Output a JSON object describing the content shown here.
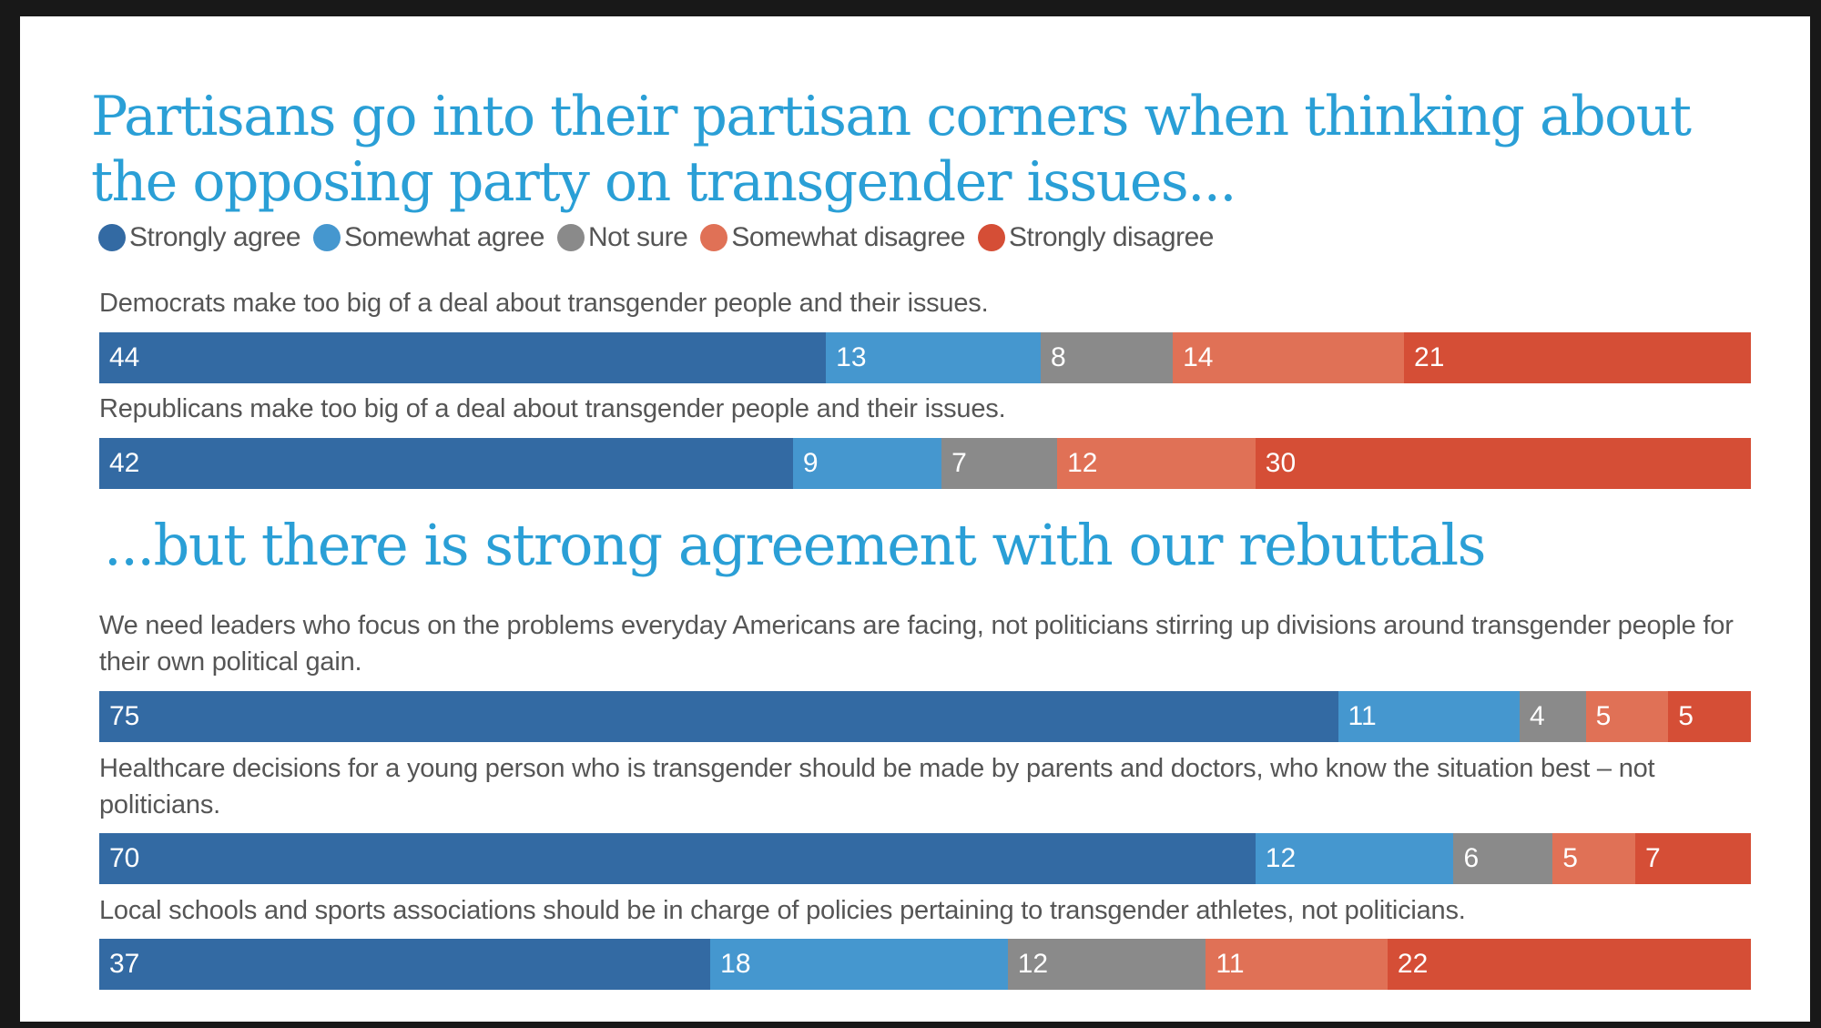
{
  "title": "Partisans go into their partisan corners when thinking about the opposing party on transgender issues...",
  "subtitle": "...but there is strong agreement with our rebuttals",
  "legend": [
    {
      "label": "Strongly agree",
      "color": "#336aa3"
    },
    {
      "label": "Somewhat agree",
      "color": "#4597cf"
    },
    {
      "label": "Not sure",
      "color": "#8a8a8a"
    },
    {
      "label": "Somewhat disagree",
      "color": "#e07156"
    },
    {
      "label": "Strongly disagree",
      "color": "#d54e36"
    }
  ],
  "chart_data": {
    "type": "bar",
    "orientation": "horizontal",
    "stacked": true,
    "title": "Partisans go into their partisan corners when thinking about the opposing party on transgender issues...",
    "subtitle": "...but there is strong agreement with our rebuttals",
    "xlabel": "",
    "ylabel": "",
    "legend_position": "top-left",
    "series_names": [
      "Strongly agree",
      "Somewhat agree",
      "Not sure",
      "Somewhat disagree",
      "Strongly disagree"
    ],
    "categories": [
      "Democrats make too big of a deal about transgender people and their issues.",
      "Republicans make too big of a deal about transgender people and their issues.",
      "We need leaders who focus on the problems everyday Americans are facing, not politicians stirring up divisions around transgender people for their own political gain.",
      "Healthcare decisions for a young person who is transgender should be made by parents and doctors, who know the situation best – not politicians.",
      "Local schools and sports associations should be in charge of policies pertaining to transgender athletes, not politicians."
    ],
    "series": [
      {
        "name": "Strongly agree",
        "values": [
          44,
          42,
          75,
          70,
          37
        ]
      },
      {
        "name": "Somewhat agree",
        "values": [
          13,
          9,
          11,
          12,
          18
        ]
      },
      {
        "name": "Not sure",
        "values": [
          8,
          7,
          4,
          6,
          12
        ]
      },
      {
        "name": "Somewhat disagree",
        "values": [
          14,
          12,
          5,
          5,
          11
        ]
      },
      {
        "name": "Strongly disagree",
        "values": [
          21,
          30,
          5,
          7,
          22
        ]
      }
    ]
  },
  "questions": [
    {
      "label": "Democrats make too big of a deal about transgender people and their issues."
    },
    {
      "label": "Republicans make too big of a deal about transgender people and their issues."
    },
    {
      "label": "We need leaders who focus on the problems everyday Americans are facing, not politicians stirring up divisions around transgender people for their own political gain."
    },
    {
      "label": "Healthcare decisions for a young person who is transgender should be made by parents and doctors, who know the situation best – not politicians."
    },
    {
      "label": "Local schools and sports associations should be in charge of policies pertaining to transgender athletes, not politicians."
    }
  ]
}
